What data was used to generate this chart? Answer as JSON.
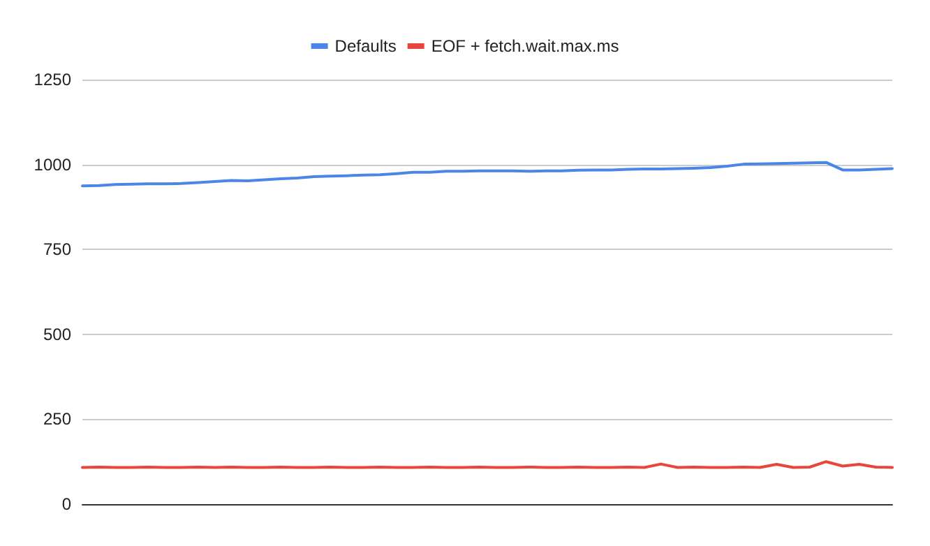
{
  "chart_data": {
    "type": "line",
    "categories": [
      null,
      null,
      null,
      null,
      null,
      null,
      null,
      null,
      null,
      null,
      null,
      null,
      null,
      null,
      null,
      null,
      null,
      null,
      null,
      null,
      null,
      null,
      null,
      null,
      null,
      null,
      null,
      null,
      null,
      null,
      null,
      null,
      null,
      null,
      null,
      null,
      null,
      null,
      null,
      null,
      null,
      null,
      null,
      null,
      null,
      null,
      null,
      null,
      null,
      null
    ],
    "series": [
      {
        "name": "Defaults",
        "color": "#4a86e8",
        "values": [
          937,
          938,
          941,
          942,
          943,
          943,
          944,
          947,
          950,
          953,
          952,
          955,
          958,
          960,
          964,
          966,
          967,
          969,
          970,
          973,
          977,
          977,
          980,
          980,
          981,
          981,
          981,
          980,
          981,
          981,
          983,
          984,
          984,
          986,
          987,
          987,
          988,
          989,
          991,
          995,
          1001,
          1002,
          1003,
          1004,
          1005,
          1006,
          984,
          984,
          986,
          988
        ]
      },
      {
        "name": "EOF + fetch.wait.max.ms",
        "color": "#e8453c",
        "values": [
          108,
          109,
          108,
          108,
          109,
          108,
          108,
          109,
          108,
          109,
          108,
          108,
          109,
          108,
          108,
          109,
          108,
          108,
          109,
          108,
          108,
          109,
          108,
          108,
          109,
          108,
          108,
          109,
          108,
          108,
          109,
          108,
          108,
          109,
          108,
          118,
          108,
          109,
          108,
          108,
          109,
          108,
          117,
          108,
          109,
          125,
          112,
          117,
          109,
          108
        ]
      }
    ],
    "ylim": [
      0,
      1250
    ],
    "yticks": [
      0,
      250,
      500,
      750,
      1000,
      1250
    ],
    "grid": "y",
    "legend": "top",
    "marker": "none",
    "line_style": "solid",
    "tick_labels": "y"
  }
}
